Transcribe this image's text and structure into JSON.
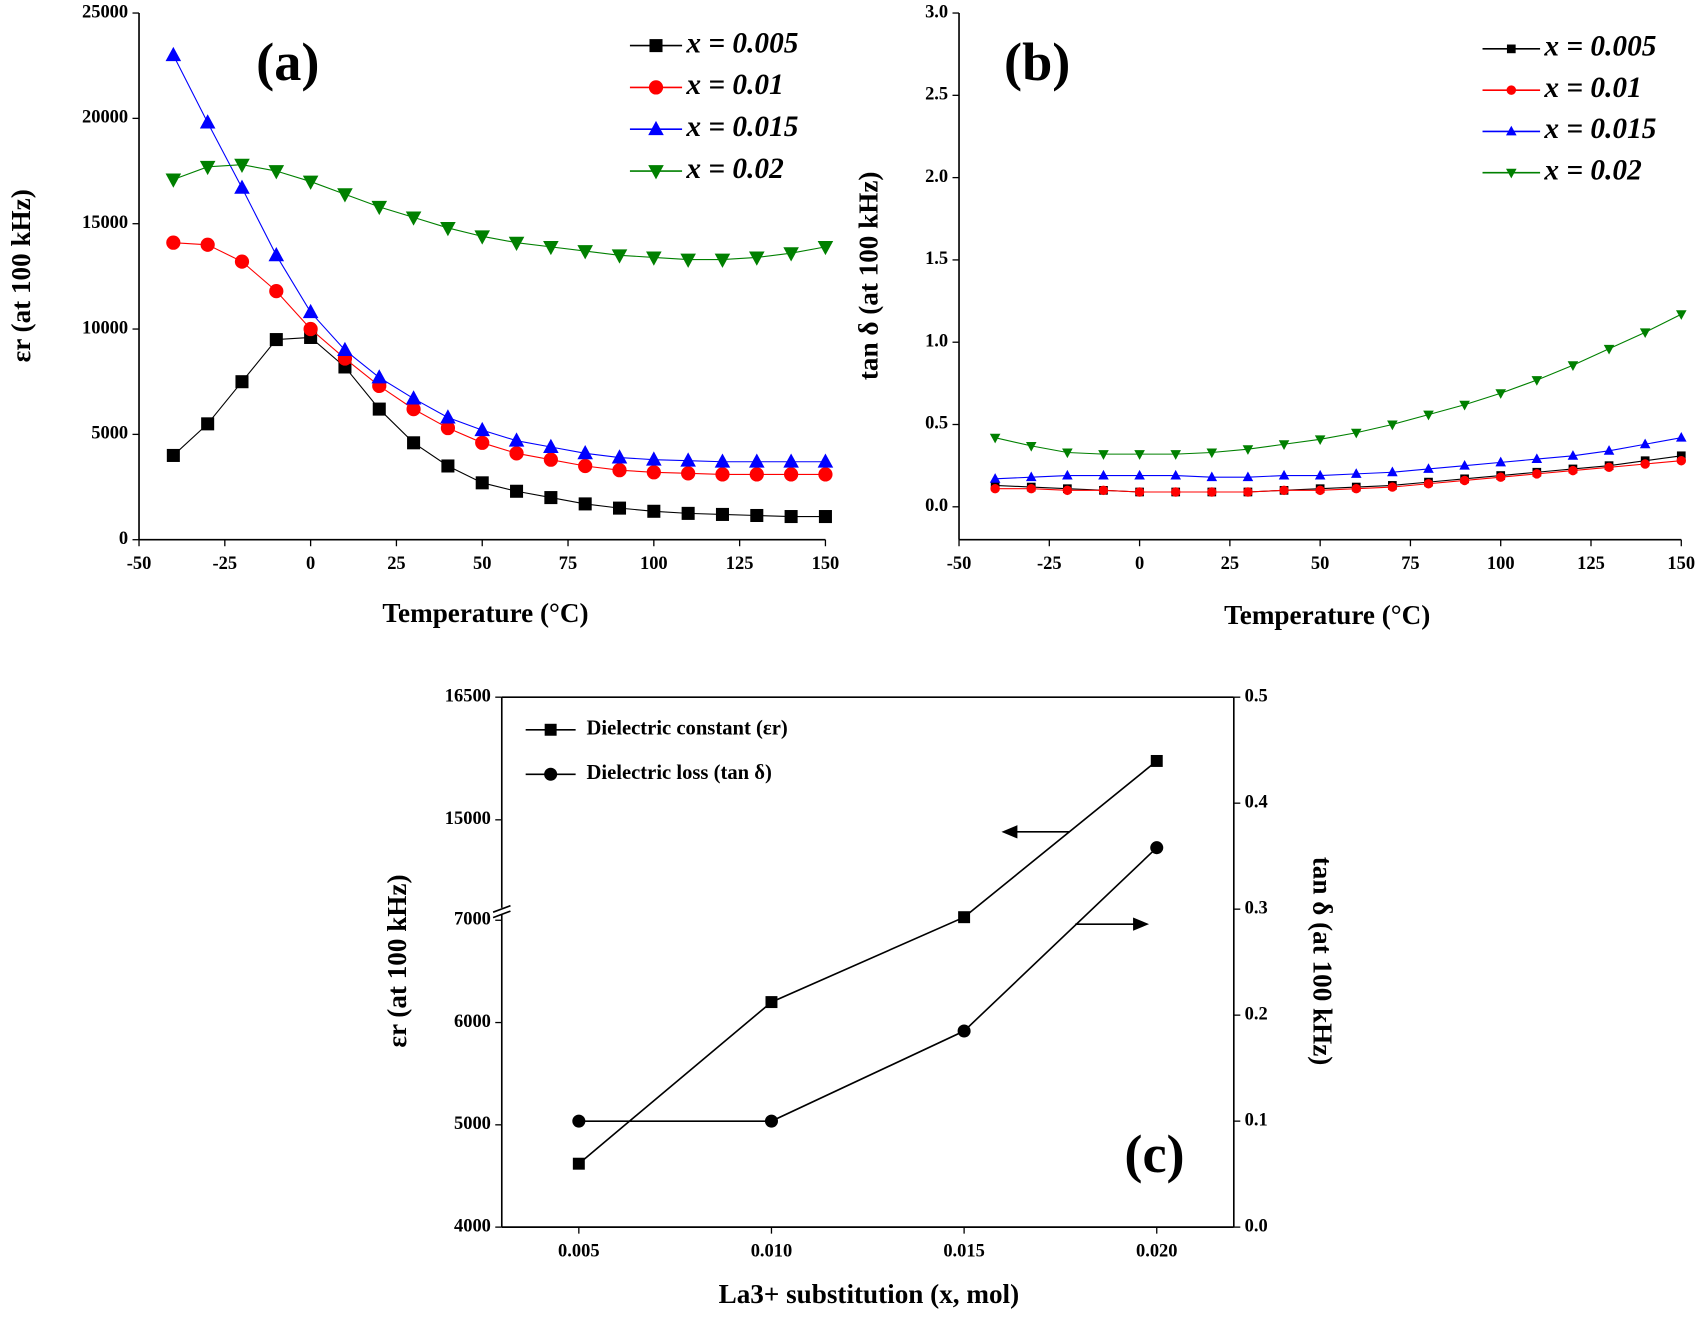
{
  "chart_data": [
    {
      "type": "line",
      "label": "(a)",
      "xlabel": "Temperature (°C)",
      "ylabel": "εr (at  100 kHz)",
      "xlim": [
        -50,
        150
      ],
      "xticks": [
        -50,
        -25,
        0,
        25,
        50,
        75,
        100,
        125,
        150
      ],
      "ylim": [
        0,
        25000
      ],
      "yticks": [
        0,
        5000,
        10000,
        15000,
        20000,
        25000
      ],
      "x": [
        -40,
        -30,
        -20,
        -10,
        0,
        10,
        20,
        30,
        40,
        50,
        60,
        70,
        80,
        90,
        100,
        110,
        120,
        130,
        140,
        150
      ],
      "series": [
        {
          "name": "x = 0.005",
          "color": "#000000",
          "marker": "square",
          "values": [
            4000,
            5500,
            7500,
            9500,
            9600,
            8200,
            6200,
            4600,
            3500,
            2700,
            2300,
            2000,
            1700,
            1500,
            1350,
            1250,
            1200,
            1150,
            1100,
            1100
          ]
        },
        {
          "name": "x = 0.01",
          "color": "#ff0000",
          "marker": "circle",
          "values": [
            14100,
            14000,
            13200,
            11800,
            10000,
            8600,
            7300,
            6200,
            5300,
            4600,
            4100,
            3800,
            3500,
            3300,
            3200,
            3150,
            3100,
            3100,
            3100,
            3100
          ]
        },
        {
          "name": "x = 0.015",
          "color": "#0000ff",
          "marker": "triangle-up",
          "values": [
            23000,
            19800,
            16700,
            13500,
            10800,
            9000,
            7700,
            6700,
            5800,
            5200,
            4700,
            4400,
            4100,
            3900,
            3800,
            3750,
            3700,
            3700,
            3700,
            3700
          ]
        },
        {
          "name": "x = 0.02",
          "color": "#008000",
          "marker": "triangle-down",
          "values": [
            17100,
            17700,
            17800,
            17500,
            17000,
            16400,
            15800,
            15300,
            14800,
            14400,
            14100,
            13900,
            13700,
            13500,
            13400,
            13300,
            13300,
            13400,
            13600,
            13900
          ]
        }
      ]
    },
    {
      "type": "line",
      "label": "(b)",
      "xlabel": "Temperature (°C)",
      "ylabel": "tan δ (at  100 kHz)",
      "xlim": [
        -50,
        150
      ],
      "xticks": [
        -50,
        -25,
        0,
        25,
        50,
        75,
        100,
        125,
        150
      ],
      "ylim": [
        -0.2,
        3.0
      ],
      "yticks": [
        {
          "value": 0,
          "label": "0.0"
        },
        0.5,
        {
          "value": 1,
          "label": "1.0"
        },
        1.5,
        {
          "value": 2,
          "label": "2.0"
        },
        2.5,
        {
          "value": 3,
          "label": "3.0"
        }
      ],
      "x": [
        -40,
        -30,
        -20,
        -10,
        0,
        10,
        20,
        30,
        40,
        50,
        60,
        70,
        80,
        90,
        100,
        110,
        120,
        130,
        140,
        150
      ],
      "series": [
        {
          "name": "x = 0.005",
          "color": "#000000",
          "marker": "square",
          "values": [
            0.13,
            0.12,
            0.11,
            0.1,
            0.09,
            0.09,
            0.09,
            0.09,
            0.1,
            0.11,
            0.12,
            0.13,
            0.15,
            0.17,
            0.19,
            0.21,
            0.23,
            0.25,
            0.28,
            0.31
          ]
        },
        {
          "name": "x = 0.01",
          "color": "#ff0000",
          "marker": "circle",
          "values": [
            0.11,
            0.11,
            0.1,
            0.1,
            0.09,
            0.09,
            0.09,
            0.09,
            0.1,
            0.1,
            0.11,
            0.12,
            0.14,
            0.16,
            0.18,
            0.2,
            0.22,
            0.24,
            0.26,
            0.28
          ]
        },
        {
          "name": "x = 0.015",
          "color": "#0000ff",
          "marker": "triangle-up",
          "values": [
            0.17,
            0.18,
            0.19,
            0.19,
            0.19,
            0.19,
            0.18,
            0.18,
            0.19,
            0.19,
            0.2,
            0.21,
            0.23,
            0.25,
            0.27,
            0.29,
            0.31,
            0.34,
            0.38,
            0.42
          ]
        },
        {
          "name": "x = 0.02",
          "color": "#008000",
          "marker": "triangle-down",
          "values": [
            0.42,
            0.37,
            0.33,
            0.32,
            0.32,
            0.32,
            0.33,
            0.35,
            0.38,
            0.41,
            0.45,
            0.5,
            0.56,
            0.62,
            0.69,
            0.77,
            0.86,
            0.96,
            1.06,
            1.17
          ]
        }
      ]
    },
    {
      "type": "line",
      "label": "(c)",
      "xlabel": "La3+ substitution (x, mol)",
      "ylabel": "εr (at  100 kHz)",
      "y2label": "tan δ (at  100 kHz)",
      "xlim": [
        0.003,
        0.022
      ],
      "xticks": [
        0.005,
        {
          "value": 0.01,
          "label": "0.010"
        },
        0.015,
        {
          "value": 0.02,
          "label": "0.020"
        }
      ],
      "ylim": [
        4000,
        16500
      ],
      "ybreak": [
        7100,
        14800
      ],
      "yticks": [
        4000,
        5000,
        6000,
        7000,
        15000,
        16500
      ],
      "y2lim": [
        0,
        0.5
      ],
      "y2ticks": [
        {
          "value": 0,
          "label": "0.0"
        },
        0.1,
        0.2,
        0.3,
        0.4,
        0.5
      ],
      "x": [
        0.005,
        0.01,
        0.015,
        0.02
      ],
      "series": [
        {
          "name": "Dielectric constant (εr)",
          "color": "#000000",
          "marker": "square",
          "values": [
            4620,
            6200,
            7030,
            15720
          ]
        },
        {
          "name": "Dielectric loss (tan δ)",
          "color": "#000000",
          "marker": "circle",
          "axis": "y2",
          "values": [
            0.1,
            0.1,
            0.185,
            0.358
          ]
        }
      ]
    }
  ]
}
